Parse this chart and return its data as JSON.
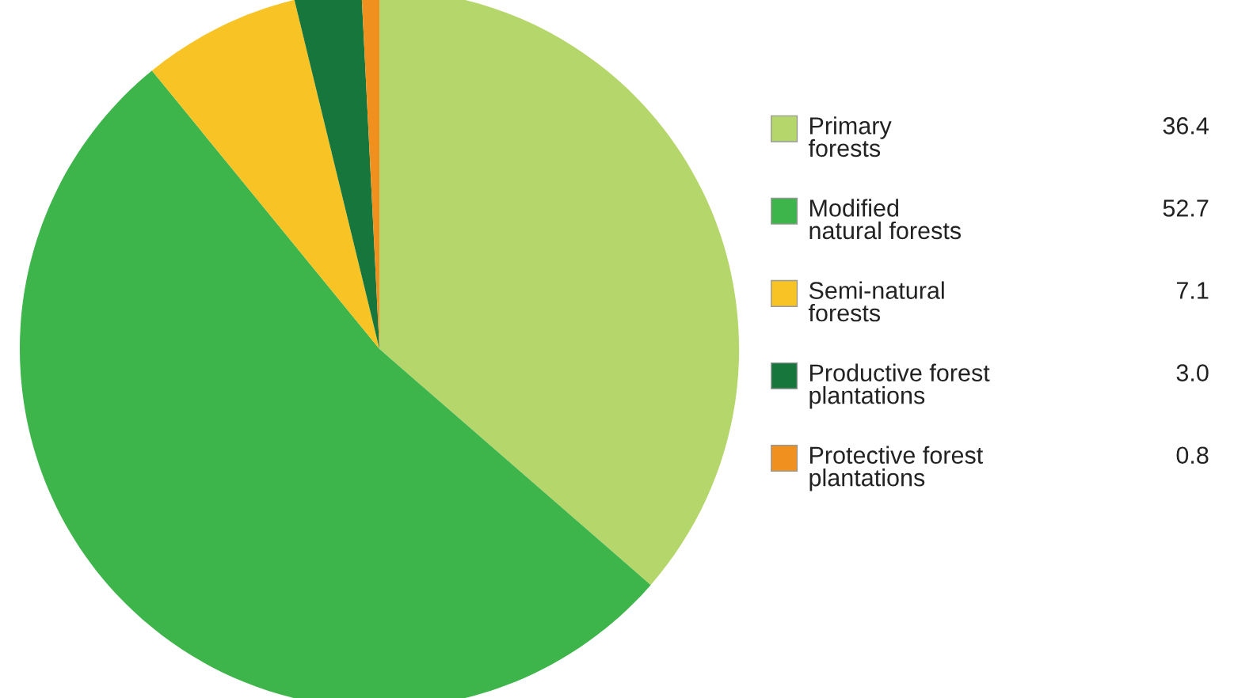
{
  "chart_data": {
    "type": "pie",
    "categories": [
      "Primary\nforests",
      "Modified\nnatural forests",
      "Semi-natural\nforests",
      "Productive forest\nplantations",
      "Protective forest\nplantations"
    ],
    "values": [
      36.4,
      52.7,
      7.1,
      3.0,
      0.8
    ],
    "colors": [
      "#b5d66b",
      "#3db54a",
      "#f8c425",
      "#17763c",
      "#f0901e"
    ],
    "value_labels": [
      "36.4",
      "52.7",
      "7.1",
      "3.0",
      "0.8"
    ],
    "legend": "right"
  }
}
